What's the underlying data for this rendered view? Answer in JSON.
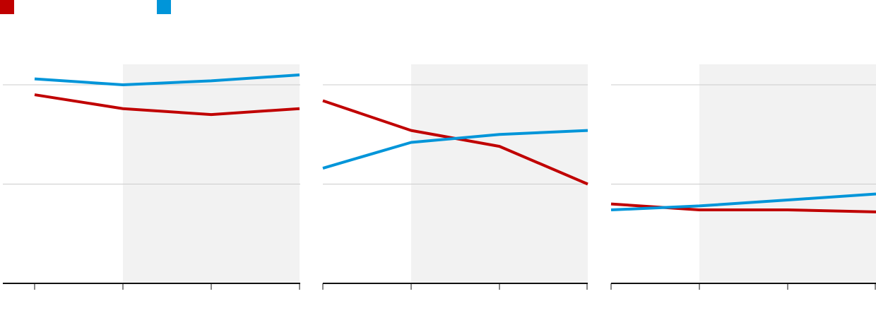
{
  "colors": {
    "series_a": "#c00000",
    "series_b": "#0095d9",
    "shade": "#f2f2f2",
    "grid": "#cccccc",
    "axis": "#111111"
  },
  "legend": {
    "items": [
      {
        "swatch_color": "#c00000",
        "label": ""
      },
      {
        "swatch_color": "#0095d9",
        "label": ""
      }
    ]
  },
  "chart_data": [
    {
      "type": "line",
      "title": "",
      "x": [
        0,
        1,
        2,
        3
      ],
      "ylim": [
        0,
        100
      ],
      "gridlines": [
        50,
        100
      ],
      "shaded_x_range": [
        1,
        3
      ],
      "grid": true,
      "series": [
        {
          "color": "#c00000",
          "values": [
            95,
            88,
            85,
            88
          ]
        },
        {
          "color": "#0095d9",
          "values": [
            103,
            100,
            102,
            105
          ]
        }
      ]
    },
    {
      "type": "line",
      "title": "",
      "x": [
        0,
        1,
        2,
        3
      ],
      "ylim": [
        0,
        100
      ],
      "gridlines": [
        50,
        100
      ],
      "shaded_x_range": [
        1,
        3
      ],
      "grid": true,
      "series": [
        {
          "color": "#c00000",
          "values": [
            92,
            77,
            69,
            50
          ]
        },
        {
          "color": "#0095d9",
          "values": [
            58,
            71,
            75,
            77
          ]
        }
      ]
    },
    {
      "type": "line",
      "title": "",
      "x": [
        0,
        1,
        2,
        3
      ],
      "ylim": [
        0,
        100
      ],
      "gridlines": [
        50,
        100
      ],
      "shaded_x_range": [
        1,
        3
      ],
      "grid": true,
      "series": [
        {
          "color": "#c00000",
          "values": [
            40,
            37,
            37,
            36
          ]
        },
        {
          "color": "#0095d9",
          "values": [
            37,
            39,
            42,
            45
          ]
        }
      ]
    }
  ]
}
